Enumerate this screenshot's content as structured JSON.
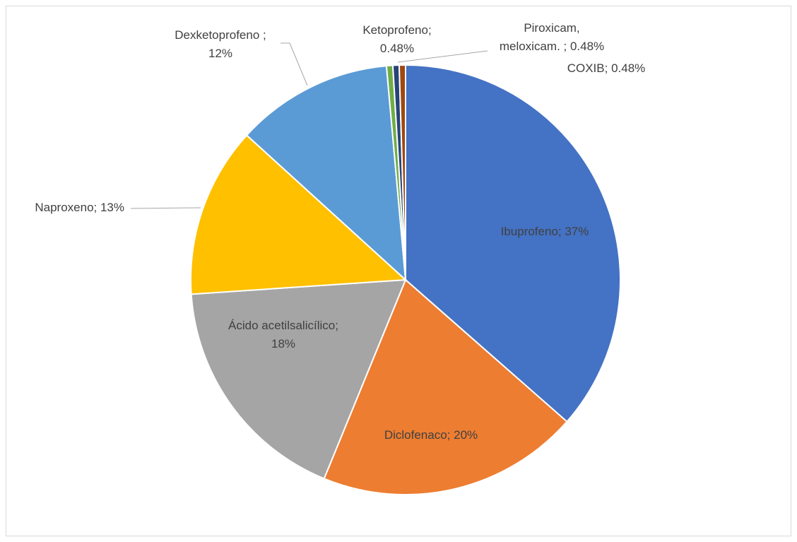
{
  "chart_data": {
    "type": "pie",
    "values": [
      37,
      20,
      18,
      13,
      12,
      0.48,
      0.48,
      0.48
    ],
    "value_labels": [
      "Ibuprofeno; 37%",
      "Diclofenaco; 20%",
      "Ácido acetilsalicílico;\n18%",
      "Naproxeno; 13%",
      "Dexketoprofeno ;\n12%",
      "Ketoprofeno;\n0.48%",
      "Piroxicam,\nmeloxicam. ; 0.48%",
      "COXIB; 0.48%"
    ],
    "colors": [
      "#4472c4",
      "#ed7d31",
      "#a5a5a5",
      "#ffc000",
      "#5b9bd5",
      "#70ad47",
      "#264478",
      "#9e480e"
    ]
  }
}
